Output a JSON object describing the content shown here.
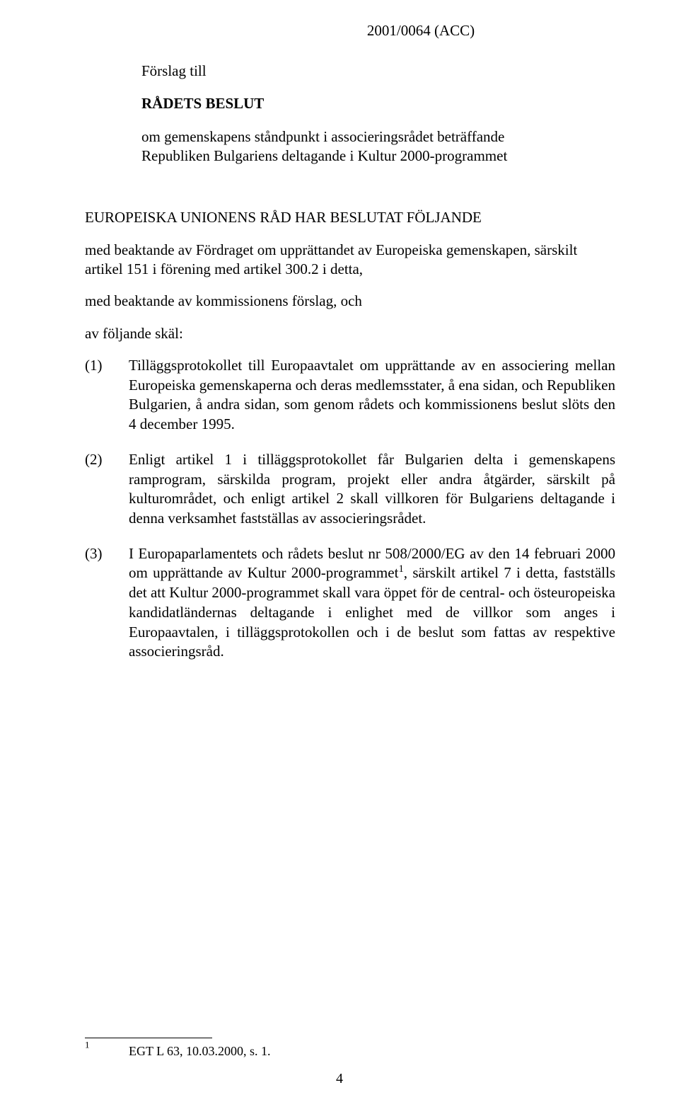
{
  "document": {
    "reference": "2001/0064 (ACC)",
    "proposal_intro": "Förslag till",
    "council_decision": "RÅDETS BESLUT",
    "subject": "om gemenskapens ståndpunkt i associeringsrådet beträffande Republiken Bulgariens deltagande i Kultur 2000-programmet",
    "recital_intro": "EUROPEISKA UNIONENS RÅD HAR BESLUTAT FÖLJANDE",
    "recital_para1": "med beaktande av Fördraget om upprättandet av Europeiska gemenskapen, särskilt artikel 151 i förening med artikel 300.2 i detta,",
    "recital_para2": "med beaktande av kommissionens förslag, och",
    "recital_para3": "av följande skäl:",
    "recitals": [
      {
        "num": "(1)",
        "text": "Tilläggsprotokollet till Europaavtalet om upprättande av en associering mellan Europeiska gemenskaperna och deras medlemsstater, å ena sidan, och Republiken Bulgarien, å andra sidan, som genom rådets och kommissionens beslut slöts den 4 december 1995."
      },
      {
        "num": "(2)",
        "text": "Enligt artikel 1 i tilläggsprotokollet får Bulgarien delta i gemenskapens ramprogram, särskilda program, projekt eller andra åtgärder, särskilt på kulturområdet, och enligt artikel 2 skall villkoren för Bulgariens deltagande i denna verksamhet fastställas av associeringsrådet."
      },
      {
        "num": "(3)",
        "text_before_sup": "I Europaparlamentets och rådets beslut nr 508/2000/EG av den 14 februari 2000 om upprättande av Kultur 2000-programmet",
        "sup": "1",
        "text_after_sup": ", särskilt artikel 7 i detta, fastställs det att Kultur 2000-programmet skall vara öppet för de central- och östeuropeiska kandidatländernas deltagande i enlighet med de villkor som anges i Europaavtalen, i tilläggsprotokollen och i de beslut som fattas av respektive associeringsråd."
      }
    ],
    "footnote": {
      "num": "1",
      "text": "EGT L 63, 10.03.2000, s. 1."
    },
    "page_number": "4"
  }
}
